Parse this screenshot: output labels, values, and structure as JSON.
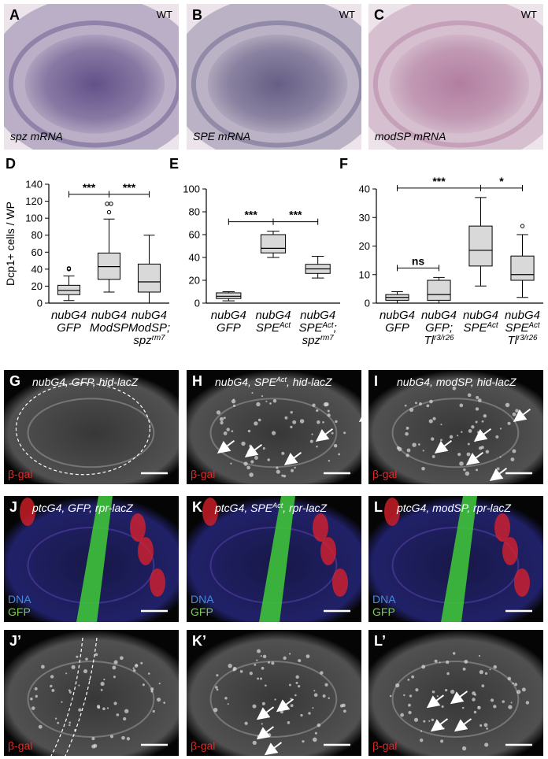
{
  "panels": [
    {
      "letter": "A",
      "kind": "ish",
      "color": "#5e4c86",
      "tag": "WT",
      "caption": [
        "spz mRNA"
      ]
    },
    {
      "letter": "B",
      "kind": "ish",
      "color": "#625a82",
      "tag": "WT",
      "caption": [
        "SPE mRNA"
      ]
    },
    {
      "letter": "C",
      "kind": "ish",
      "color": "#b07a9e",
      "tag": "WT",
      "caption": [
        "modSP mRNA"
      ]
    },
    {
      "letter": "G",
      "kind": "gray",
      "caption": [
        "nubG4, GFP, hid-lacZ"
      ],
      "stains": [
        {
          "text": "β-gal",
          "color": "#e02a2a"
        }
      ]
    },
    {
      "letter": "H",
      "kind": "gray",
      "caption": [
        "nubG4, SPE",
        {
          "sup": "Act"
        },
        ", hid-lacZ"
      ],
      "stains": [
        {
          "text": "β-gal",
          "color": "#e02a2a"
        }
      ]
    },
    {
      "letter": "I",
      "kind": "gray",
      "caption": [
        "nubG4, modSP, hid-lacZ"
      ],
      "stains": [
        {
          "text": "β-gal",
          "color": "#e02a2a"
        }
      ]
    },
    {
      "letter": "J",
      "kind": "merge",
      "caption": [
        "ptcG4, GFP, rpr-lacZ"
      ],
      "stains": [
        {
          "text": "DNA",
          "color": "#4a8ad8"
        },
        {
          "text": "GFP",
          "color": "#74d048"
        }
      ]
    },
    {
      "letter": "K",
      "kind": "merge",
      "caption": [
        "ptcG4, SPE",
        {
          "sup": "Act"
        },
        ", rpr-lacZ"
      ],
      "stains": [
        {
          "text": "DNA",
          "color": "#4a8ad8"
        },
        {
          "text": "GFP",
          "color": "#74d048"
        }
      ]
    },
    {
      "letter": "L",
      "kind": "merge",
      "caption": [
        "ptcG4, modSP, rpr-lacZ"
      ],
      "stains": [
        {
          "text": "DNA",
          "color": "#4a8ad8"
        },
        {
          "text": "GFP",
          "color": "#74d048"
        }
      ]
    },
    {
      "letter": "J’",
      "kind": "gray",
      "stains": [
        {
          "text": "β-gal",
          "color": "#e02a2a"
        }
      ]
    },
    {
      "letter": "K’",
      "kind": "gray",
      "stains": [
        {
          "text": "β-gal",
          "color": "#e02a2a"
        }
      ]
    },
    {
      "letter": "L’",
      "kind": "gray",
      "stains": [
        {
          "text": "β-gal",
          "color": "#e02a2a"
        }
      ]
    }
  ],
  "chart_data": [
    {
      "type": "box",
      "letter": "D",
      "ylabel": "Dcp1+ cells / WP",
      "color": "#d9d9d9",
      "ylim": [
        0,
        140
      ],
      "yticks": [
        0,
        20,
        40,
        60,
        80,
        100,
        120,
        140
      ],
      "categories": [
        [
          [
            "nubG4"
          ],
          [
            "GFP"
          ]
        ],
        [
          [
            "nubG4"
          ],
          [
            "ModSP"
          ]
        ],
        [
          [
            "nubG4"
          ],
          [
            "ModSP;"
          ],
          [
            "spz",
            {
              "sup": "rm7"
            }
          ]
        ]
      ],
      "boxes": [
        {
          "min": 3,
          "q1": 10,
          "median": 15,
          "q3": 21,
          "max": 32,
          "outliers": [
            40,
            41
          ]
        },
        {
          "min": 13,
          "q1": 28,
          "median": 43,
          "q3": 59,
          "max": 99,
          "outliers": [
            107,
            117,
            117
          ]
        },
        {
          "min": 0,
          "q1": 13,
          "median": 25,
          "q3": 46,
          "max": 80,
          "outliers": []
        }
      ],
      "comparisons": [
        {
          "from": 0,
          "to": 1,
          "label": "***"
        },
        {
          "from": 1,
          "to": 2,
          "label": "***"
        }
      ]
    },
    {
      "type": "box",
      "letter": "E",
      "color": "#d9d9d9",
      "ylim": [
        0,
        100
      ],
      "yticks": [
        0,
        20,
        40,
        60,
        80,
        100
      ],
      "categories": [
        [
          [
            "nubG4"
          ],
          [
            "GFP"
          ]
        ],
        [
          [
            "nubG4"
          ],
          [
            "SPE",
            {
              "sup": "Act"
            }
          ]
        ],
        [
          [
            "nubG4"
          ],
          [
            "SPE",
            {
              "sup": "Act"
            },
            ";"
          ],
          [
            "spz",
            {
              "sup": "rm7"
            }
          ]
        ]
      ],
      "boxes": [
        {
          "min": 2,
          "q1": 4,
          "median": 6,
          "q3": 9,
          "max": 10,
          "outliers": []
        },
        {
          "min": 40,
          "q1": 44,
          "median": 48,
          "q3": 60,
          "max": 63,
          "outliers": []
        },
        {
          "min": 22,
          "q1": 26,
          "median": 30,
          "q3": 34,
          "max": 41,
          "outliers": []
        }
      ],
      "comparisons": [
        {
          "from": 0,
          "to": 1,
          "label": "***"
        },
        {
          "from": 1,
          "to": 2,
          "label": "***"
        }
      ]
    },
    {
      "type": "box",
      "letter": "F",
      "color": "#d9d9d9",
      "ylim": [
        0,
        40
      ],
      "yticks": [
        0,
        10,
        20,
        30,
        40
      ],
      "categories": [
        [
          [
            "nubG4"
          ],
          [
            "GFP"
          ]
        ],
        [
          [
            "nubG4"
          ],
          [
            "GFP;"
          ],
          [
            "Tl",
            {
              "sup": "r3/r26"
            }
          ]
        ],
        [
          [
            "nubG4"
          ],
          [
            "SPE",
            {
              "sup": "Act"
            }
          ]
        ],
        [
          [
            "nubG4"
          ],
          [
            "SPE",
            {
              "sup": "Act"
            }
          ],
          [
            "Tl",
            {
              "sup": "r3/r26"
            }
          ]
        ]
      ],
      "boxes": [
        {
          "min": 0,
          "q1": 1,
          "median": 2,
          "q3": 3,
          "max": 4,
          "outliers": []
        },
        {
          "min": 0,
          "q1": 1,
          "median": 3,
          "q3": 8,
          "max": 9,
          "outliers": []
        },
        {
          "min": 6,
          "q1": 13,
          "median": 18.5,
          "q3": 27,
          "max": 37,
          "outliers": []
        },
        {
          "min": 2,
          "q1": 8,
          "median": 10,
          "q3": 16.5,
          "max": 24,
          "outliers": [
            27
          ]
        }
      ],
      "comparisons": [
        {
          "from": 0,
          "to": 1,
          "label": "ns"
        },
        {
          "from": 0,
          "to": 2,
          "label": "***"
        },
        {
          "from": 2,
          "to": 3,
          "label": "*"
        }
      ]
    }
  ]
}
